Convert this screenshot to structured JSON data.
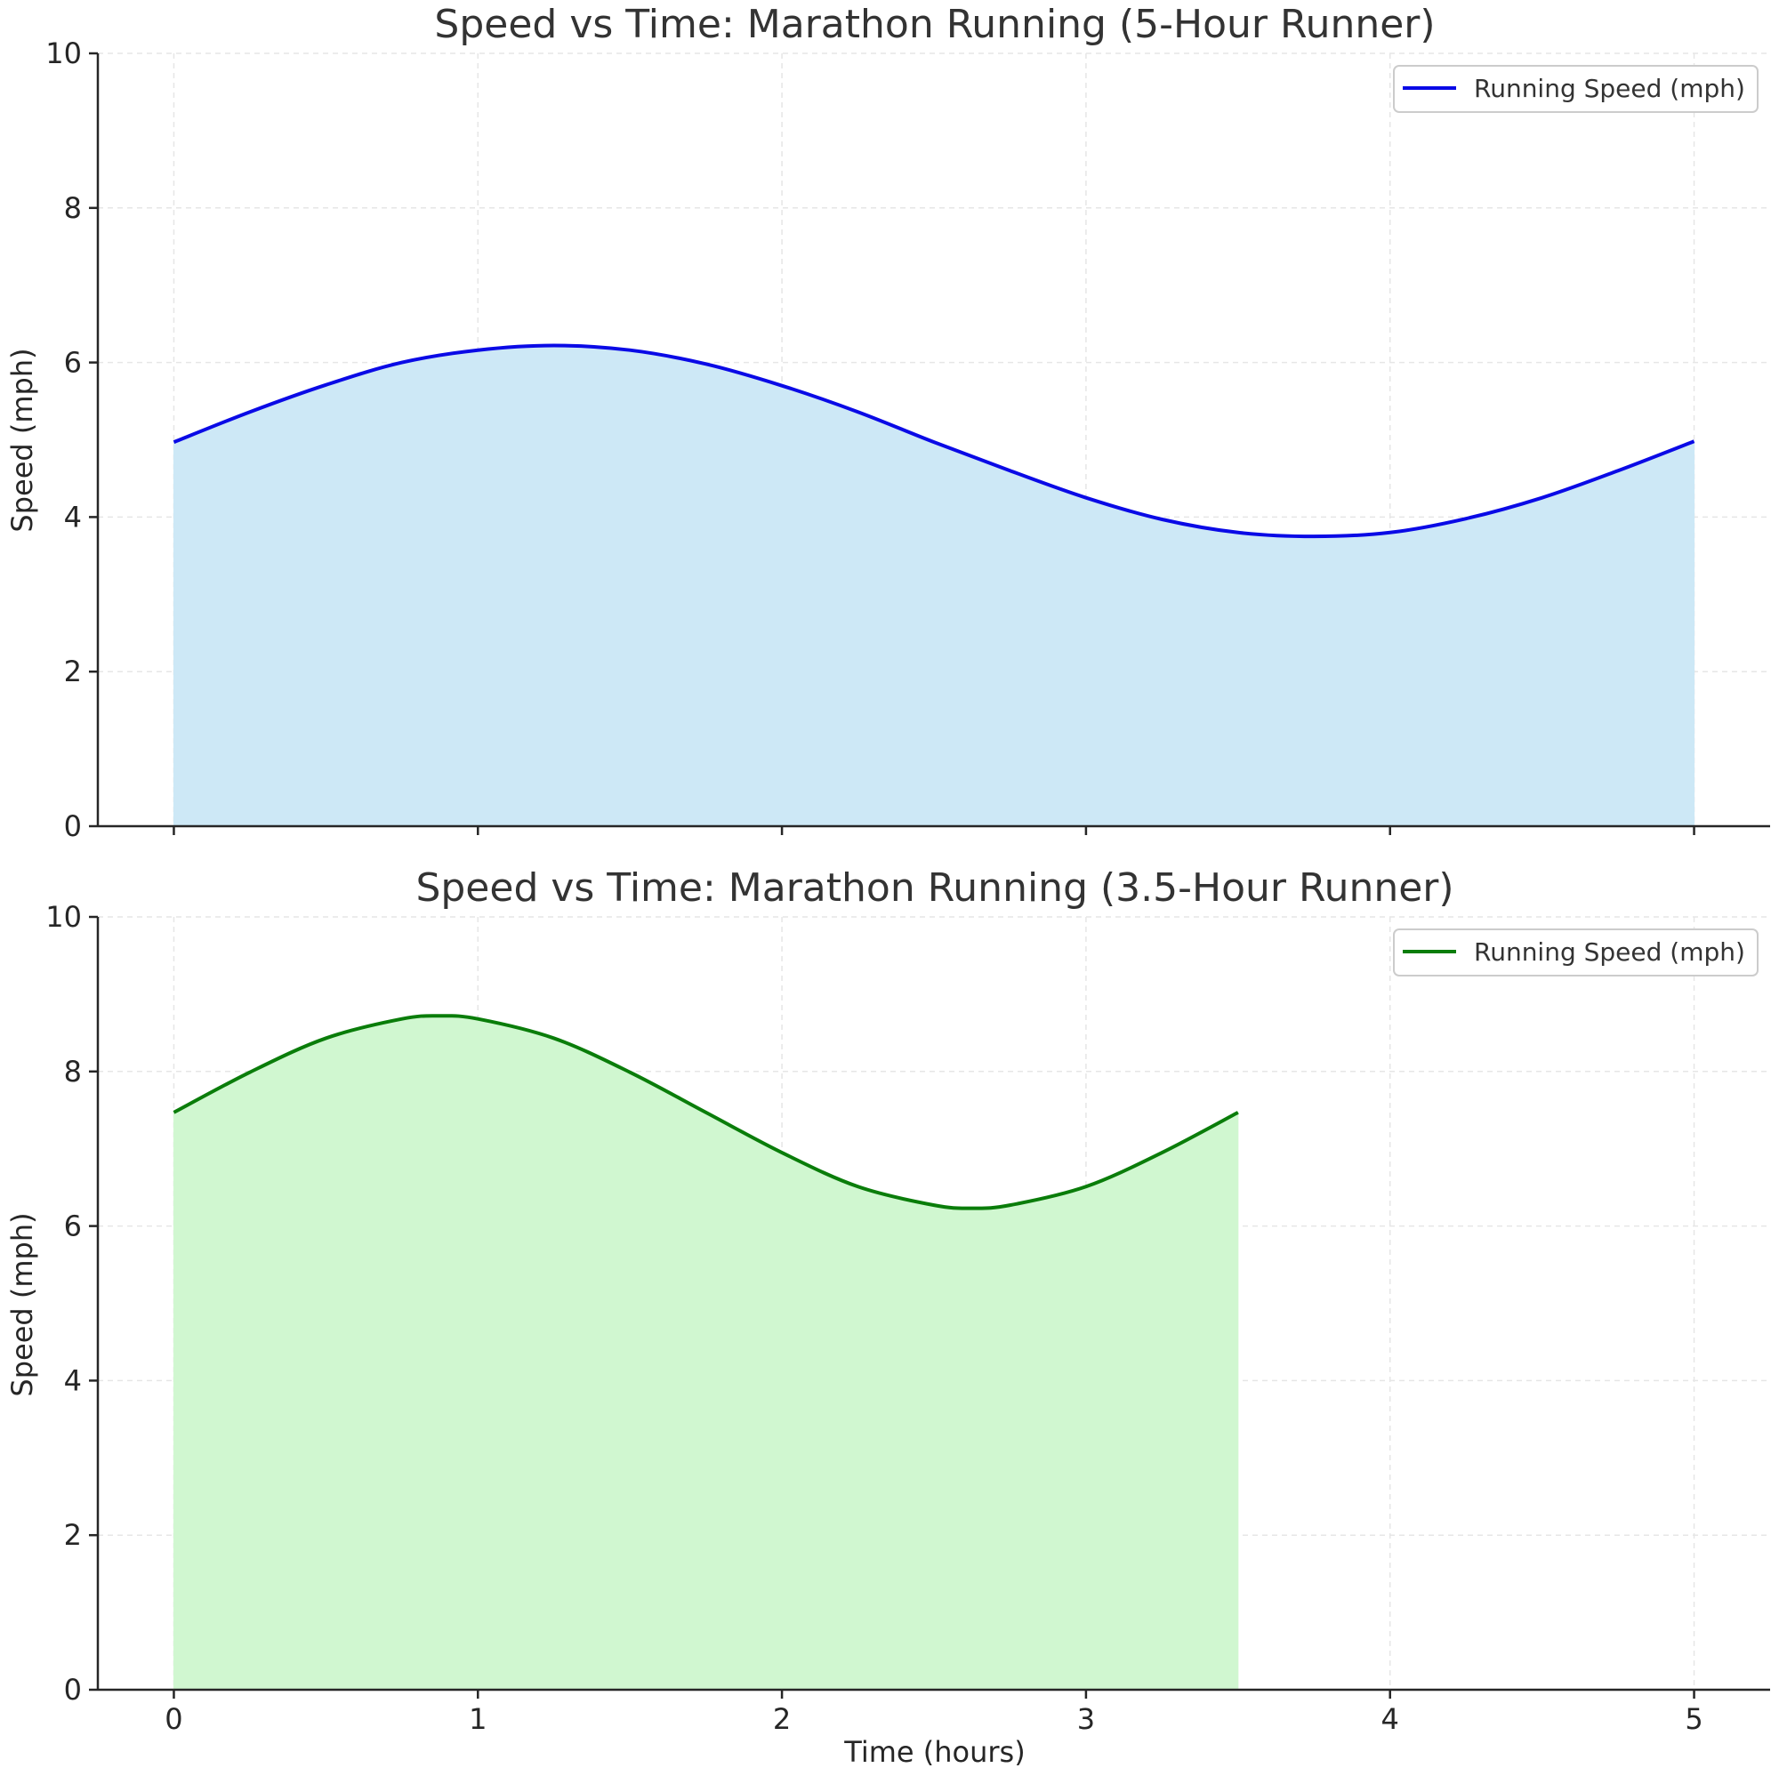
{
  "chart_data": [
    {
      "type": "area",
      "title": "Speed vs Time: Marathon Running (5-Hour Runner)",
      "xlabel": "",
      "ylabel": "Speed (mph)",
      "xlim": [
        -0.25,
        5.25
      ],
      "ylim": [
        0,
        10
      ],
      "xticks": [
        0,
        1,
        2,
        3,
        4,
        5
      ],
      "yticks": [
        0,
        2,
        4,
        6,
        8,
        10
      ],
      "grid": true,
      "legend_position": "top-right",
      "line_color": "#0a0ae6",
      "fill_color": "#cde8f6",
      "series": [
        {
          "name": "Running Speed (mph)",
          "x": [
            0,
            0.25,
            0.5,
            0.75,
            1.0,
            1.25,
            1.5,
            1.75,
            2.0,
            2.25,
            2.5,
            2.75,
            3.0,
            3.25,
            3.5,
            3.75,
            4.0,
            4.25,
            4.5,
            4.75,
            5.0
          ],
          "y": [
            4.97,
            5.36,
            5.71,
            6.0,
            6.16,
            6.22,
            6.16,
            5.98,
            5.7,
            5.36,
            4.97,
            4.6,
            4.25,
            3.97,
            3.8,
            3.75,
            3.8,
            3.98,
            4.25,
            4.6,
            4.98
          ]
        }
      ]
    },
    {
      "type": "area",
      "title": "Speed vs Time: Marathon Running (3.5-Hour Runner)",
      "xlabel": "Time (hours)",
      "ylabel": "Speed (mph)",
      "xlim": [
        -0.25,
        5.25
      ],
      "ylim": [
        0,
        10
      ],
      "xticks": [
        0,
        1,
        2,
        3,
        4,
        5
      ],
      "yticks": [
        0,
        2,
        4,
        6,
        8,
        10
      ],
      "grid": true,
      "legend_position": "top-right",
      "line_color": "#0a7d0a",
      "fill_color": "#d0f7d0",
      "series": [
        {
          "name": "Running Speed (mph)",
          "x": [
            0,
            0.25,
            0.5,
            0.75,
            0.875,
            1.0,
            1.25,
            1.5,
            1.75,
            2.0,
            2.25,
            2.5,
            2.625,
            2.75,
            3.0,
            3.25,
            3.5
          ],
          "y": [
            7.47,
            7.99,
            8.43,
            8.68,
            8.72,
            8.68,
            8.43,
            7.99,
            7.47,
            6.95,
            6.51,
            6.27,
            6.23,
            6.27,
            6.51,
            6.95,
            7.47
          ]
        }
      ]
    }
  ]
}
